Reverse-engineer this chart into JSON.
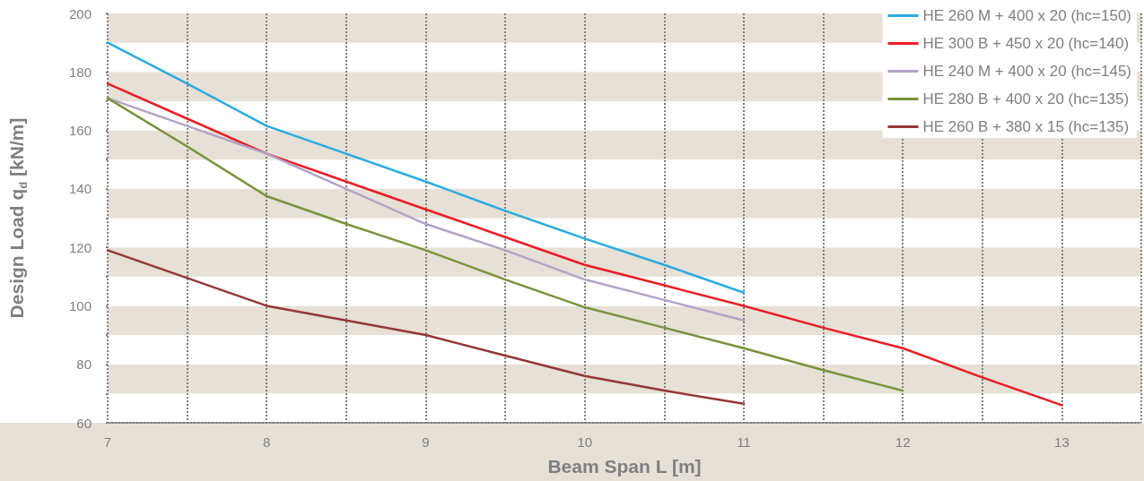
{
  "chart_data": {
    "type": "line",
    "xlabel": "Beam Span L [m]",
    "ylabel": "Design Load q$_{d}$ [kN/m]",
    "xlim": [
      7,
      13.5
    ],
    "ylim": [
      60,
      200
    ],
    "xticks": [
      7,
      {
        "value": 7.5,
        "label": null
      },
      8,
      {
        "value": 8.5,
        "label": null
      },
      9,
      {
        "value": 9.5,
        "label": null
      },
      10,
      {
        "value": 10.5,
        "label": null
      },
      11,
      {
        "value": 11.5,
        "label": null
      },
      12,
      {
        "value": 12.5,
        "label": null
      },
      13,
      {
        "value": 13.5,
        "label": null
      }
    ],
    "yticks": [
      60,
      {
        "value": 70,
        "label": null
      },
      80,
      {
        "value": 90,
        "label": null
      },
      100,
      {
        "value": 110,
        "label": null
      },
      120,
      {
        "value": 130,
        "label": null
      },
      140,
      {
        "value": 150,
        "label": null
      },
      160,
      {
        "value": 170,
        "label": null
      },
      180,
      {
        "value": 190,
        "label": null
      },
      200
    ],
    "grid": "x",
    "legend": "top right",
    "marker": "none",
    "line_style": "solid",
    "series": [
      {
        "name": "HE 260 M + 400 x 20 (hc=150)",
        "color": "#29abe2",
        "x": [
          7,
          7.5,
          8,
          8.5,
          9,
          9.5,
          10,
          10.5,
          11
        ],
        "values": [
          190,
          176,
          161.5,
          152,
          142.5,
          132.5,
          123,
          114,
          104.5
        ]
      },
      {
        "name": "HE 300 B + 450 x 20 (hc=140)",
        "color": "#ed1c24",
        "x": [
          7,
          7.5,
          8,
          8.5,
          9,
          9.5,
          10,
          10.5,
          11,
          11.5,
          12,
          12.5,
          13
        ],
        "values": [
          176,
          164,
          152,
          142.5,
          133,
          123.5,
          114,
          107,
          100,
          92.5,
          85.5,
          75.5,
          66
        ]
      },
      {
        "name": "HE 240 M + 400 x 20 (hc=145)",
        "color": "#b3a2c7",
        "x": [
          7,
          7.5,
          8,
          8.5,
          9,
          9.5,
          10,
          10.5,
          11
        ],
        "values": [
          171,
          161.5,
          152,
          140,
          128,
          119,
          109,
          102,
          95
        ]
      },
      {
        "name": "HE 280 B + 400 x 20 (hc=135)",
        "color": "#77933c",
        "x": [
          7,
          7.5,
          8,
          8.5,
          9,
          9.5,
          10,
          10.5,
          11,
          11.5,
          12
        ],
        "values": [
          171,
          154.5,
          137.5,
          128,
          119,
          109,
          99.5,
          92.5,
          85.5,
          78,
          71
        ]
      },
      {
        "name": "HE 260 B + 380 x 15 (hc=135)",
        "color": "#953735",
        "x": [
          7,
          7.5,
          8,
          8.5,
          9,
          9.5,
          10,
          10.5,
          11
        ],
        "values": [
          119,
          109.5,
          100,
          95,
          90,
          83,
          76,
          71,
          66.5
        ]
      }
    ]
  }
}
